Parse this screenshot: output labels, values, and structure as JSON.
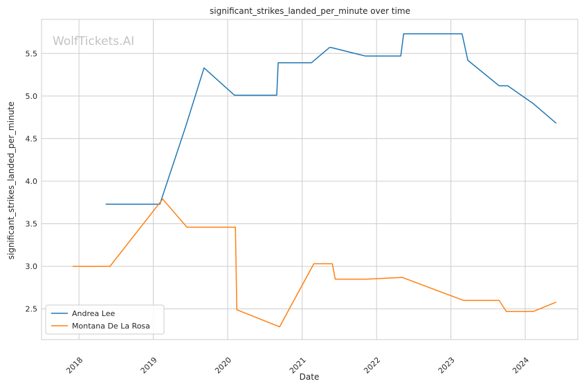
{
  "chart_data": {
    "type": "line",
    "title": "significant_strikes_landed_per_minute over time",
    "xlabel": "Date",
    "ylabel": "significant_strikes_landed_per_minute",
    "watermark": "WolfTickets.AI",
    "x_ticks": [
      "2018",
      "2019",
      "2020",
      "2021",
      "2022",
      "2023",
      "2024"
    ],
    "y_ticks": [
      "2.5",
      "3.0",
      "3.5",
      "4.0",
      "4.5",
      "5.0",
      "5.5"
    ],
    "xlim": [
      "2017-07-01",
      "2024-09-15"
    ],
    "ylim": [
      2.14,
      5.9
    ],
    "grid": true,
    "legend_position": "lower-left",
    "series": [
      {
        "name": "Andrea Lee",
        "color": "#1f77b4",
        "points": [
          [
            "2018-05-12",
            3.73
          ],
          [
            "2019-02-02",
            3.73
          ],
          [
            "2019-06-10",
            4.65
          ],
          [
            "2019-09-07",
            5.33
          ],
          [
            "2020-02-03",
            5.01
          ],
          [
            "2020-08-29",
            5.01
          ],
          [
            "2020-09-05",
            5.39
          ],
          [
            "2021-02-15",
            5.39
          ],
          [
            "2021-05-15",
            5.57
          ],
          [
            "2021-05-22",
            5.57
          ],
          [
            "2021-11-06",
            5.47
          ],
          [
            "2022-04-30",
            5.47
          ],
          [
            "2022-05-14",
            5.73
          ],
          [
            "2023-02-25",
            5.73
          ],
          [
            "2023-03-25",
            5.42
          ],
          [
            "2023-08-26",
            5.12
          ],
          [
            "2023-10-07",
            5.12
          ],
          [
            "2024-02-10",
            4.91
          ],
          [
            "2024-06-01",
            4.68
          ]
        ]
      },
      {
        "name": "Montana De La Rosa",
        "color": "#ff7f0e",
        "points": [
          [
            "2017-12-01",
            3.0
          ],
          [
            "2018-06-02",
            3.0
          ],
          [
            "2019-02-16",
            3.79
          ],
          [
            "2019-06-15",
            3.46
          ],
          [
            "2020-02-08",
            3.46
          ],
          [
            "2020-02-15",
            2.49
          ],
          [
            "2020-09-12",
            2.29
          ],
          [
            "2021-02-27",
            3.03
          ],
          [
            "2021-05-29",
            3.03
          ],
          [
            "2021-06-12",
            2.85
          ],
          [
            "2021-11-13",
            2.85
          ],
          [
            "2022-05-07",
            2.87
          ],
          [
            "2023-03-04",
            2.6
          ],
          [
            "2023-08-26",
            2.6
          ],
          [
            "2023-09-30",
            2.47
          ],
          [
            "2024-02-10",
            2.47
          ],
          [
            "2024-06-01",
            2.58
          ]
        ]
      }
    ]
  }
}
